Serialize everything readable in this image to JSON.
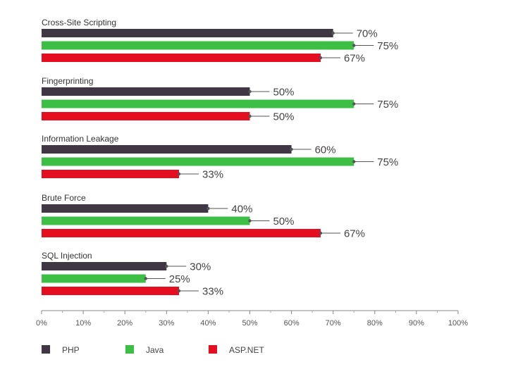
{
  "chart_data": {
    "type": "bar",
    "orientation": "horizontal",
    "categories": [
      "Cross-Site Scripting",
      "Fingerprinting",
      "Information Leakage",
      "Brute Force",
      "SQL Injection"
    ],
    "series": [
      {
        "name": "PHP",
        "color": "#3f3844",
        "values": [
          70,
          50,
          60,
          40,
          30
        ]
      },
      {
        "name": "Java",
        "color": "#3dbf46",
        "values": [
          75,
          75,
          75,
          50,
          25
        ]
      },
      {
        "name": "ASP.NET",
        "color": "#e50d20",
        "values": [
          67,
          50,
          33,
          67,
          33
        ]
      }
    ],
    "value_suffix": "%",
    "xlim": [
      0,
      100
    ],
    "xticks": [
      "0%",
      "10%",
      "20%",
      "30%",
      "40%",
      "50%",
      "60%",
      "70%",
      "80%",
      "90%",
      "100%"
    ],
    "legend_position": "bottom",
    "title": "",
    "xlabel": "",
    "ylabel": ""
  }
}
